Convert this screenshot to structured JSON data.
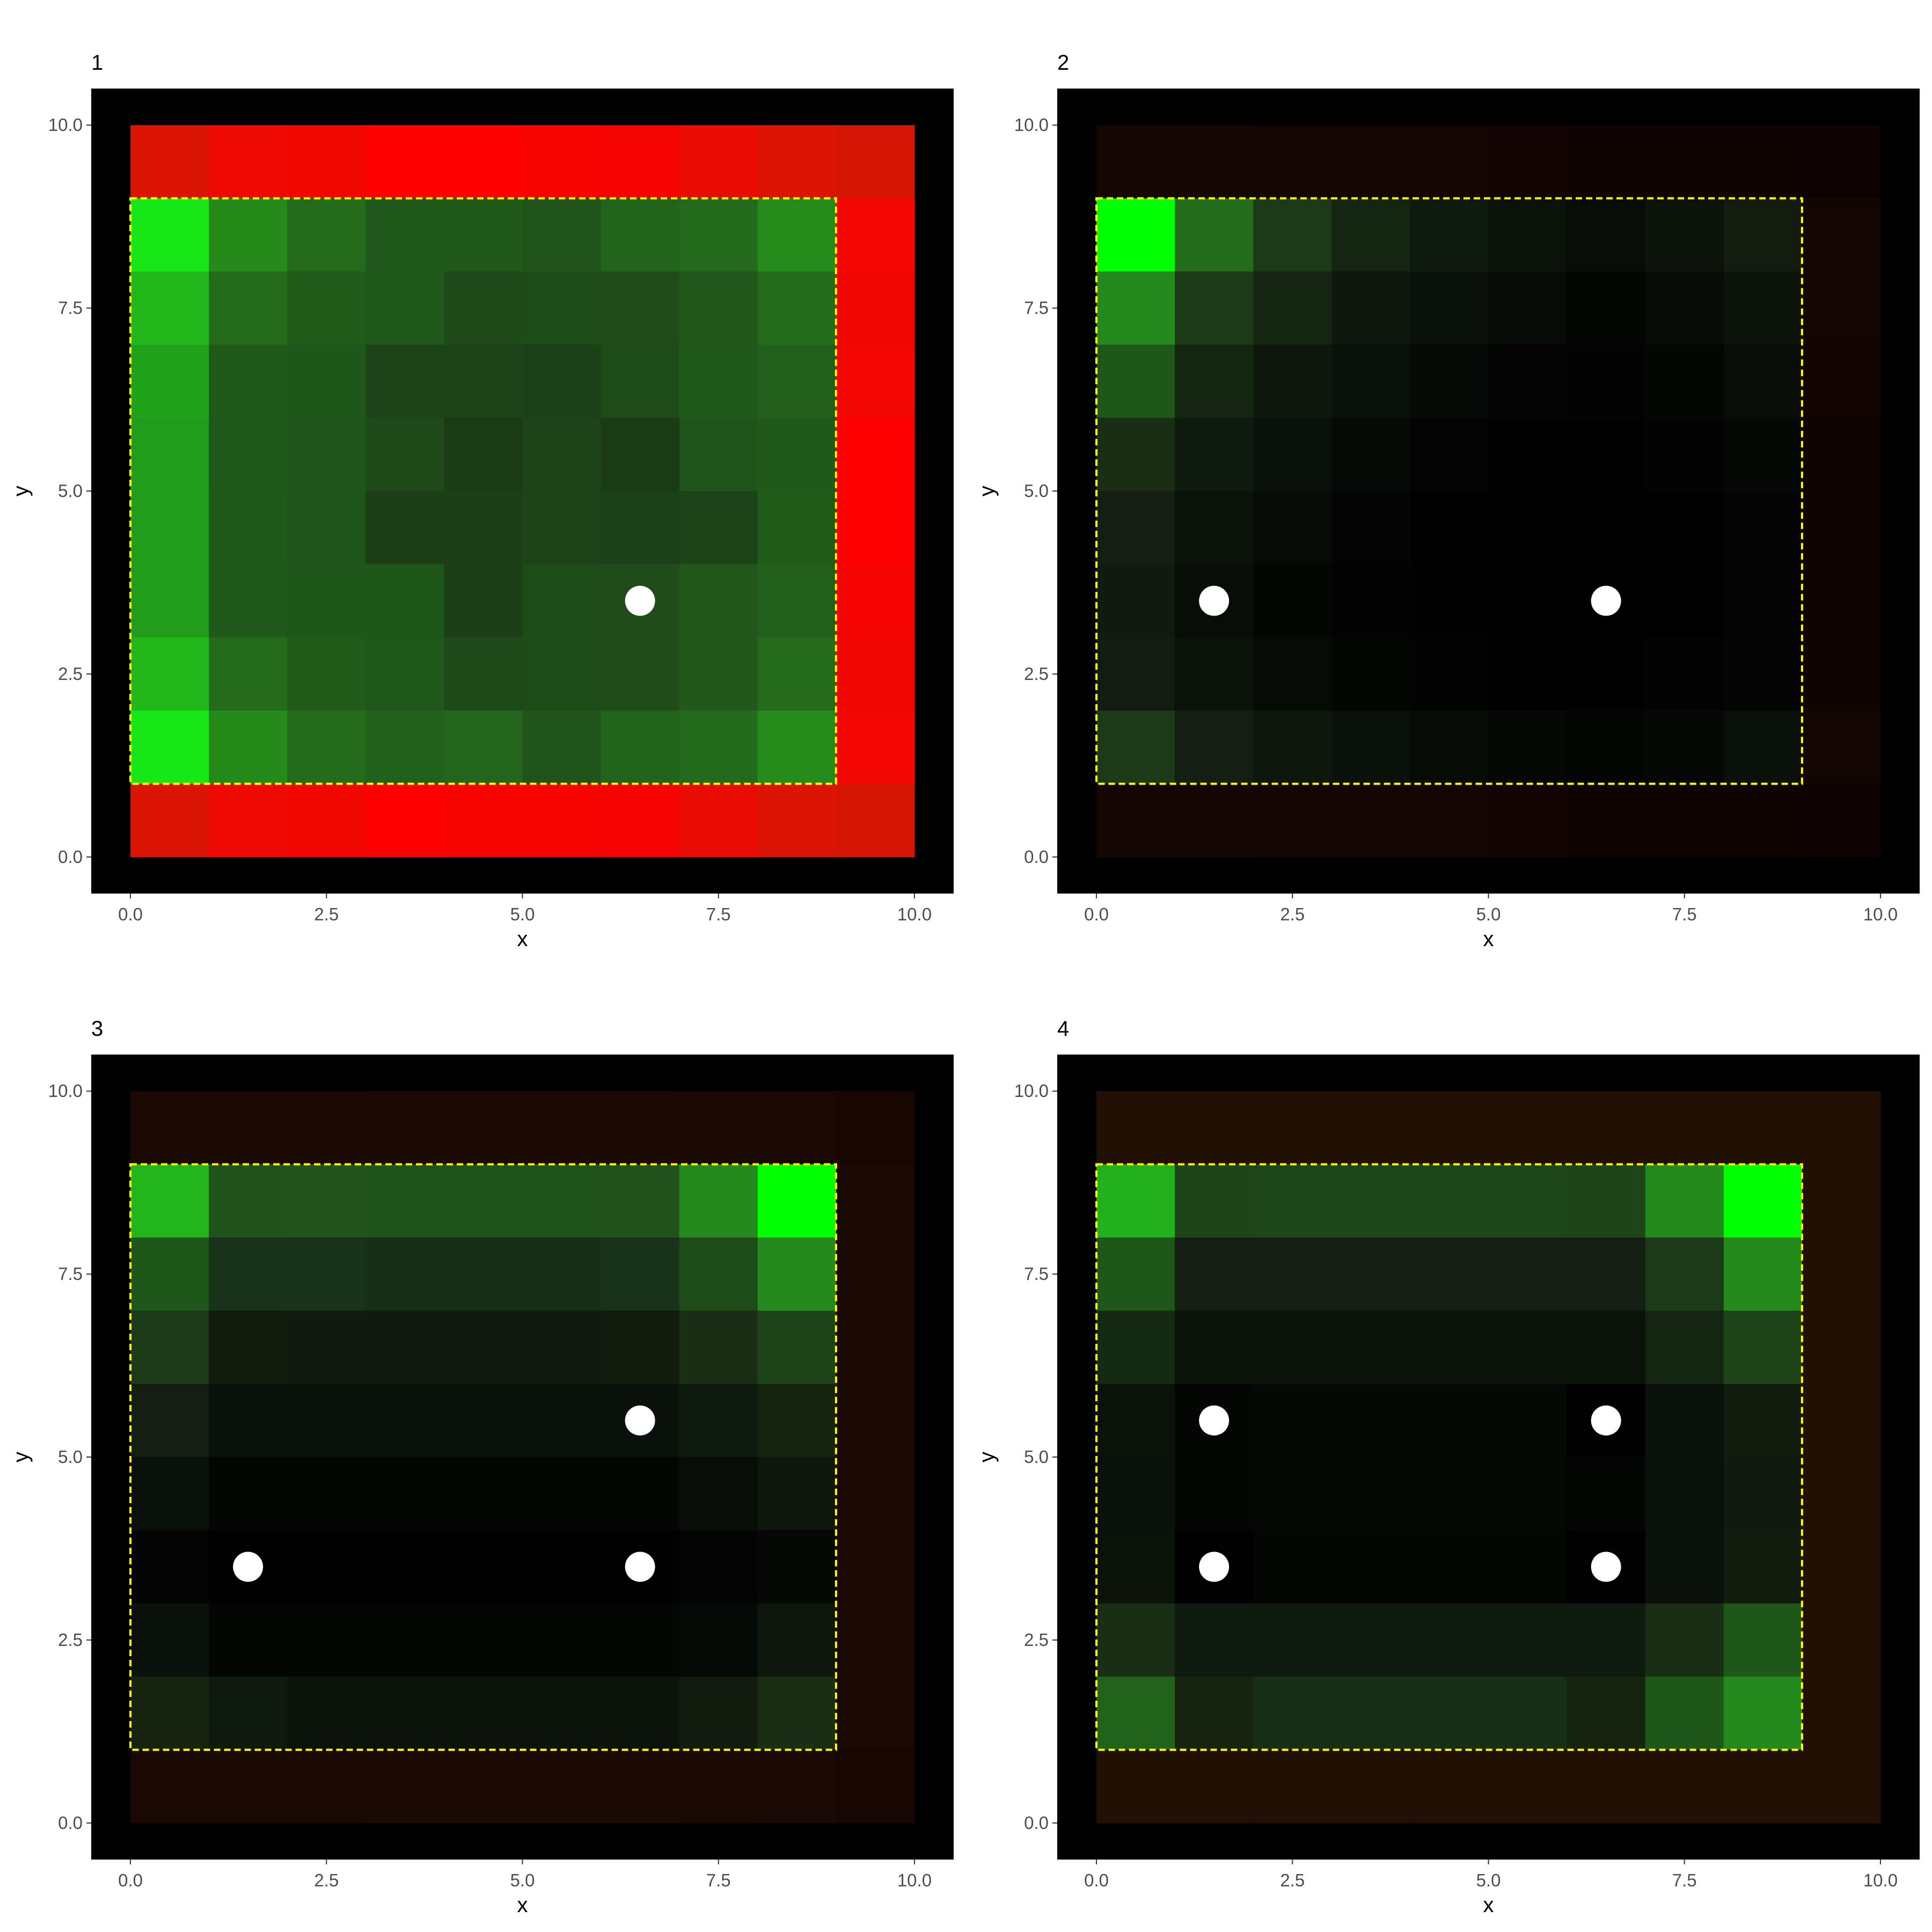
{
  "chart_data": [
    {
      "type": "heatmap",
      "title": "1",
      "xlabel": "x",
      "ylabel": "y",
      "xlim": [
        -0.5,
        10.5
      ],
      "ylim": [
        -0.5,
        10.5
      ],
      "x_ticks": [
        "0.0",
        "2.5",
        "5.0",
        "7.5",
        "10.0"
      ],
      "y_ticks": [
        "0.0",
        "2.5",
        "5.0",
        "7.5",
        "10.0"
      ],
      "grid": false,
      "background": "#000000",
      "cell_rows_top_to_bottom": [
        [
          "#dc1404",
          "#ee0a02",
          "#f20600",
          "#ff0000",
          "#ff0000",
          "#f80400",
          "#f50300",
          "#e90c02",
          "#dc1404",
          "#d61605"
        ],
        [
          "#17e617",
          "#268a1a",
          "#246c1c",
          "#1f581a",
          "#20591a",
          "#20541a",
          "#23641c",
          "#236a1d",
          "#258b1a",
          "#f40602"
        ],
        [
          "#22b81c",
          "#246c1c",
          "#205b1a",
          "#1f581a",
          "#1d4a18",
          "#1e4c19",
          "#1f4c19",
          "#22581c",
          "#246c1c",
          "#f20602"
        ],
        [
          "#21a21b",
          "#20591a",
          "#1f561a",
          "#1c4418",
          "#1c4418",
          "#1c4017",
          "#1e4c19",
          "#20591a",
          "#235f1c",
          "#f40602"
        ],
        [
          "#219c1b",
          "#1f581a",
          "#1f541a",
          "#1d4a18",
          "#1b3a16",
          "#1d4418",
          "#1b3a16",
          "#1f541a",
          "#20591a",
          "#ff0000"
        ],
        [
          "#219c1b",
          "#20591a",
          "#1f541a",
          "#1b3e17",
          "#1c3f17",
          "#1d4418",
          "#1c4017",
          "#1d4418",
          "#205b1a",
          "#ff0000"
        ],
        [
          "#219c1b",
          "#20591a",
          "#1f561a",
          "#1f561a",
          "#1c3f17",
          "#1e4c19",
          "#1f4c19",
          "#22581c",
          "#235f1c",
          "#f60401"
        ],
        [
          "#22b81c",
          "#246c1c",
          "#205b1a",
          "#1f581a",
          "#1d4a18",
          "#1e4c19",
          "#1f4c19",
          "#22581c",
          "#246c1c",
          "#f20602"
        ],
        [
          "#17e617",
          "#268a1a",
          "#246c1c",
          "#22611b",
          "#23651c",
          "#20541a",
          "#23641c",
          "#236a1d",
          "#258b1a",
          "#f40602"
        ],
        [
          "#dc1404",
          "#ee0a02",
          "#f20600",
          "#ff0000",
          "#f80400",
          "#f80400",
          "#f50300",
          "#e90c02",
          "#dc1404",
          "#d61605"
        ]
      ],
      "dashed_rect": {
        "x": [
          0,
          9
        ],
        "y": [
          1,
          9
        ],
        "color": "#ffff00"
      },
      "points": [
        [
          6.5,
          3.5
        ]
      ]
    },
    {
      "type": "heatmap",
      "title": "2",
      "xlabel": "x",
      "ylabel": "y",
      "xlim": [
        -0.5,
        10.5
      ],
      "ylim": [
        -0.5,
        10.5
      ],
      "x_ticks": [
        "0.0",
        "2.5",
        "5.0",
        "7.5",
        "10.0"
      ],
      "y_ticks": [
        "0.0",
        "2.5",
        "5.0",
        "7.5",
        "10.0"
      ],
      "grid": false,
      "background": "#000000",
      "cell_rows_top_to_bottom": [
        [
          "#140602",
          "#140602",
          "#130602",
          "#130602",
          "#120502",
          "#110402",
          "#100402",
          "#0f0402",
          "#0f0402",
          "#0e0302"
        ],
        [
          "#00ff00",
          "#236d1d",
          "#1c3a17",
          "#142612",
          "#0f1a0e",
          "#0b120a",
          "#080d07",
          "#0c130a",
          "#141c10",
          "#130502"
        ],
        [
          "#248a1d",
          "#1c3a17",
          "#142612",
          "#0e170c",
          "#0a100a",
          "#070b06",
          "#040604",
          "#070a06",
          "#0c130a",
          "#120502"
        ],
        [
          "#1f571b",
          "#142612",
          "#0e170c",
          "#0a100a",
          "#060a06",
          "#030403",
          "#020302",
          "#040604",
          "#080d07",
          "#110402"
        ],
        [
          "#192e15",
          "#0f1a0e",
          "#0a100a",
          "#060a06",
          "#030403",
          "#010101",
          "#010101",
          "#020302",
          "#060806",
          "#100402"
        ],
        [
          "#141e12",
          "#0b120a",
          "#070b06",
          "#030403",
          "#010101",
          "#000000",
          "#000000",
          "#010101",
          "#040504",
          "#100402"
        ],
        [
          "#101a0e",
          "#080d07",
          "#040604",
          "#020302",
          "#010101",
          "#000000",
          "#000000",
          "#000000",
          "#030403",
          "#100402"
        ],
        [
          "#121c10",
          "#0b120a",
          "#070b06",
          "#040604",
          "#020302",
          "#010101",
          "#010101",
          "#020302",
          "#040504",
          "#100402"
        ],
        [
          "#1c3a17",
          "#141e12",
          "#0e170c",
          "#0a100a",
          "#070b06",
          "#050805",
          "#040604",
          "#050805",
          "#0a100a",
          "#120502"
        ],
        [
          "#140602",
          "#140602",
          "#130602",
          "#130602",
          "#120502",
          "#110402",
          "#100402",
          "#0f0402",
          "#0f0402",
          "#0e0302"
        ]
      ],
      "dashed_rect": {
        "x": [
          0,
          9
        ],
        "y": [
          1,
          9
        ],
        "color": "#ffff00"
      },
      "points": [
        [
          1.5,
          3.5
        ],
        [
          6.5,
          3.5
        ]
      ]
    },
    {
      "type": "heatmap",
      "title": "3",
      "xlabel": "x",
      "ylabel": "y",
      "xlim": [
        -0.5,
        10.5
      ],
      "ylim": [
        -0.5,
        10.5
      ],
      "x_ticks": [
        "0.0",
        "2.5",
        "5.0",
        "7.5",
        "10.0"
      ],
      "y_ticks": [
        "0.0",
        "2.5",
        "5.0",
        "7.5",
        "10.0"
      ],
      "grid": false,
      "background": "#000000",
      "cell_rows_top_to_bottom": [
        [
          "#1a0803",
          "#1a0803",
          "#1a0803",
          "#1b0903",
          "#1b0903",
          "#1b0903",
          "#1b0903",
          "#1a0803",
          "#190803",
          "#170602"
        ],
        [
          "#22b51c",
          "#22521b",
          "#22541b",
          "#20531a",
          "#20531a",
          "#20531a",
          "#22521b",
          "#248a1d",
          "#00ff00",
          "#1a0803"
        ],
        [
          "#1f571b",
          "#19331a",
          "#18331a",
          "#172f16",
          "#172f16",
          "#172f16",
          "#18331a",
          "#1e4c19",
          "#248a1d",
          "#1a0803"
        ],
        [
          "#1c3a17",
          "#111c0e",
          "#101a0e",
          "#101a0e",
          "#101a0e",
          "#101a0e",
          "#111c0e",
          "#192e15",
          "#1c4418",
          "#1a0803"
        ],
        [
          "#141e12",
          "#0a100a",
          "#0a100a",
          "#0a100a",
          "#0a100a",
          "#0a100a",
          "#0a100a",
          "#0f1a0e",
          "#16230f",
          "#1a0803"
        ],
        [
          "#0a100a",
          "#040604",
          "#040604",
          "#040604",
          "#040604",
          "#040604",
          "#040604",
          "#080d07",
          "#0e170c",
          "#1a0803"
        ],
        [
          "#030403",
          "#010101",
          "#010101",
          "#010101",
          "#010101",
          "#010101",
          "#010101",
          "#030403",
          "#050805",
          "#1a0803"
        ],
        [
          "#0a100a",
          "#040604",
          "#040604",
          "#040604",
          "#040604",
          "#040604",
          "#040604",
          "#060a06",
          "#0e170c",
          "#1a0803"
        ],
        [
          "#16230f",
          "#0f1a0e",
          "#0c130a",
          "#0c130a",
          "#0c130a",
          "#0c130a",
          "#0c130a",
          "#111c0e",
          "#192e15",
          "#1a0803"
        ],
        [
          "#1a0803",
          "#1a0803",
          "#1a0803",
          "#1b0903",
          "#1b0903",
          "#1b0903",
          "#1b0903",
          "#1a0803",
          "#190803",
          "#170602"
        ]
      ],
      "dashed_rect": {
        "x": [
          0,
          9
        ],
        "y": [
          1,
          9
        ],
        "color": "#ffff00"
      },
      "points": [
        [
          6.5,
          5.5
        ],
        [
          1.5,
          3.5
        ],
        [
          6.5,
          3.5
        ]
      ]
    },
    {
      "type": "heatmap",
      "title": "4",
      "xlabel": "x",
      "ylabel": "y",
      "xlim": [
        -0.5,
        10.5
      ],
      "ylim": [
        -0.5,
        10.5
      ],
      "x_ticks": [
        "0.0",
        "2.5",
        "5.0",
        "7.5",
        "10.0"
      ],
      "y_ticks": [
        "0.0",
        "2.5",
        "5.0",
        "7.5",
        "10.0"
      ],
      "grid": false,
      "background": "#000000",
      "cell_rows_top_to_bottom": [
        [
          "#231004",
          "#231004",
          "#231004",
          "#231004",
          "#231004",
          "#231004",
          "#231004",
          "#231004",
          "#231004",
          "#221004"
        ],
        [
          "#22b01c",
          "#1e4519",
          "#1e4719",
          "#1e4719",
          "#1e4719",
          "#1e4719",
          "#1e4519",
          "#248a1d",
          "#00ff00",
          "#231004"
        ],
        [
          "#1f571b",
          "#141e12",
          "#141e12",
          "#141e12",
          "#141e12",
          "#141e12",
          "#141e12",
          "#1c3a17",
          "#248a1d",
          "#231004"
        ],
        [
          "#142a12",
          "#0b120a",
          "#0b120a",
          "#0b120a",
          "#0b120a",
          "#0b120a",
          "#0b120a",
          "#142612",
          "#1c4418",
          "#231004"
        ],
        [
          "#0b120a",
          "#040604",
          "#050805",
          "#050805",
          "#050805",
          "#050805",
          "#010101",
          "#0a100a",
          "#111c0e",
          "#231004"
        ],
        [
          "#0a100a",
          "#040604",
          "#050805",
          "#050805",
          "#050805",
          "#050805",
          "#040604",
          "#0a100a",
          "#101a0e",
          "#231004"
        ],
        [
          "#0b120a",
          "#010101",
          "#040604",
          "#040604",
          "#040604",
          "#040604",
          "#010101",
          "#0a100a",
          "#111c0e",
          "#231004"
        ],
        [
          "#192e15",
          "#0f1a0e",
          "#0f1a0e",
          "#0f1a0e",
          "#0f1a0e",
          "#0f1a0e",
          "#0f1a0e",
          "#192e15",
          "#1f571b",
          "#231004"
        ],
        [
          "#22631b",
          "#16230f",
          "#172f16",
          "#172f16",
          "#172f16",
          "#172f16",
          "#16230f",
          "#1f561a",
          "#248a1d",
          "#231004"
        ],
        [
          "#231004",
          "#231004",
          "#231004",
          "#231004",
          "#231004",
          "#231004",
          "#231004",
          "#231004",
          "#231004",
          "#221004"
        ]
      ],
      "dashed_rect": {
        "x": [
          0,
          9
        ],
        "y": [
          1,
          9
        ],
        "color": "#ffff00"
      },
      "points": [
        [
          1.5,
          5.5
        ],
        [
          6.5,
          5.5
        ],
        [
          1.5,
          3.5
        ],
        [
          6.5,
          3.5
        ]
      ]
    }
  ]
}
